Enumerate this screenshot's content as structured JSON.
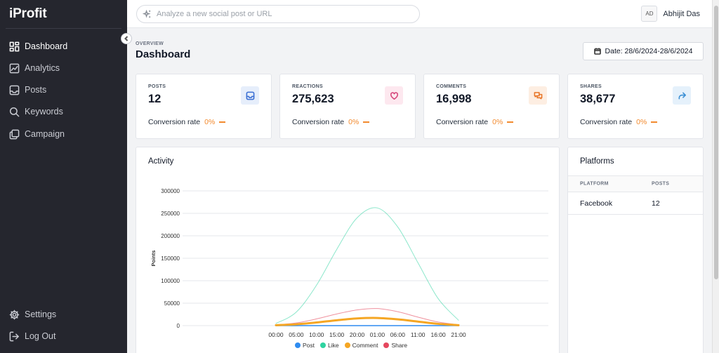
{
  "brand": "iProfit",
  "sidebar": {
    "items": [
      {
        "label": "Dashboard",
        "icon": "dashboard-icon"
      },
      {
        "label": "Analytics",
        "icon": "analytics-icon"
      },
      {
        "label": "Posts",
        "icon": "inbox-icon"
      },
      {
        "label": "Keywords",
        "icon": "search-icon"
      },
      {
        "label": "Campaign",
        "icon": "copy-icon"
      }
    ],
    "bottom": [
      {
        "label": "Settings",
        "icon": "gear-icon"
      },
      {
        "label": "Log Out",
        "icon": "logout-icon"
      }
    ]
  },
  "topbar": {
    "search_placeholder": "Analyze a new social post or URL",
    "avatar_initials": "AD",
    "user_name": "Abhijit Das"
  },
  "header": {
    "overline": "OVERVIEW",
    "title": "Dashboard",
    "date_label": "Date: 28/6/2024-28/6/2024"
  },
  "stats": [
    {
      "label": "POSTS",
      "value": "12",
      "conv_label": "Conversion rate",
      "conv_value": "0%",
      "icon": "inbox-icon",
      "color": "#3b6fd4",
      "bg": "#e6eefb"
    },
    {
      "label": "REACTIONS",
      "value": "275,623",
      "conv_label": "Conversion rate",
      "conv_value": "0%",
      "icon": "heart-icon",
      "color": "#d6457a",
      "bg": "#fde8ef"
    },
    {
      "label": "COMMENTS",
      "value": "16,998",
      "conv_label": "Conversion rate",
      "conv_value": "0%",
      "icon": "comments-icon",
      "color": "#e8772a",
      "bg": "#fdeee2"
    },
    {
      "label": "SHARES",
      "value": "38,677",
      "conv_label": "Conversion rate",
      "conv_value": "0%",
      "icon": "share-icon",
      "color": "#3b8fd4",
      "bg": "#e5f1fb"
    }
  ],
  "activity": {
    "title": "Activity"
  },
  "chart_data": {
    "type": "line",
    "title": "",
    "ylabel": "Points",
    "xlabel": "",
    "x": [
      "00:00",
      "05:00",
      "10:00",
      "15:00",
      "20:00",
      "01:00",
      "06:00",
      "11:00",
      "16:00",
      "21:00"
    ],
    "yticks": [
      "300000",
      "250000",
      "200000",
      "150000",
      "100000",
      "50000",
      "0"
    ],
    "ylim": [
      0,
      300000
    ],
    "grid": true,
    "legend_position": "bottom",
    "series": [
      {
        "name": "Post",
        "color": "#2f8cf0",
        "values": [
          0,
          0,
          0,
          0,
          0,
          0,
          0,
          0,
          0,
          0
        ]
      },
      {
        "name": "Like",
        "color": "#2ed3a0",
        "values": [
          5000,
          30000,
          90000,
          170000,
          240000,
          262000,
          220000,
          140000,
          60000,
          12000
        ]
      },
      {
        "name": "Comment",
        "color": "#f5a623",
        "values": [
          1000,
          3000,
          7000,
          12000,
          16000,
          17000,
          14000,
          9000,
          4000,
          1000
        ]
      },
      {
        "name": "Share",
        "color": "#e5475e",
        "values": [
          1500,
          6000,
          15000,
          26000,
          35000,
          38000,
          31000,
          19000,
          8000,
          2000
        ]
      }
    ]
  },
  "platforms": {
    "title": "Platforms",
    "columns": [
      "PLATFORM",
      "POSTS"
    ],
    "rows": [
      {
        "platform": "Facebook",
        "posts": "12"
      }
    ]
  }
}
